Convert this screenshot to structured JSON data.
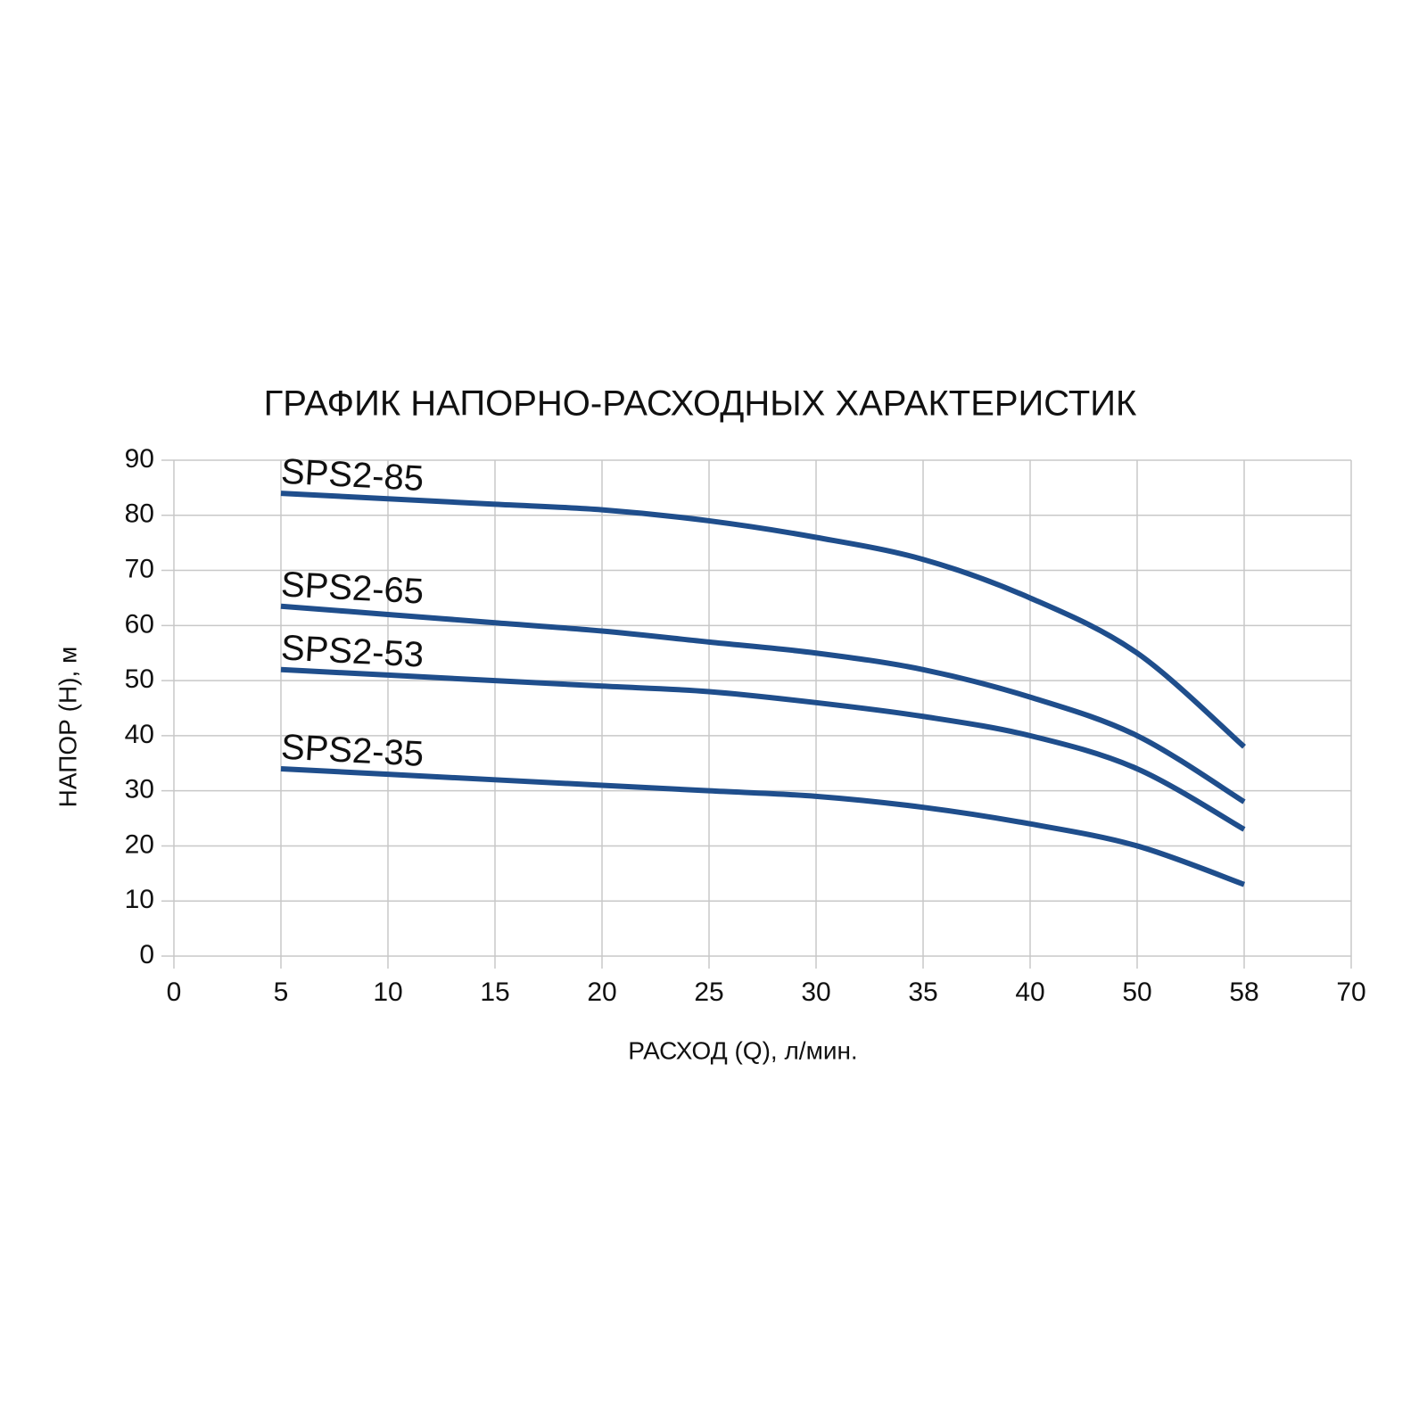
{
  "chart_data": {
    "type": "line",
    "title": "ГРАФИК НАПОРНО-РАСХОДНЫХ ХАРАКТЕРИСТИК",
    "x_label": "РАСХОД (Q), л/мин.",
    "y_label": "НАПОР (H), м",
    "categories": [
      "0",
      "5",
      "10",
      "15",
      "20",
      "25",
      "30",
      "35",
      "40",
      "50",
      "58",
      "70"
    ],
    "series": [
      {
        "name": "SPS2-85",
        "color": "#1f4e8c",
        "values": [
          null,
          84,
          83,
          82,
          81,
          79,
          76,
          72,
          65,
          55,
          38,
          null
        ]
      },
      {
        "name": "SPS2-65",
        "color": "#1f4e8c",
        "values": [
          null,
          63.5,
          62,
          60.5,
          59,
          57,
          55,
          52,
          47,
          40,
          28,
          null
        ]
      },
      {
        "name": "SPS2-53",
        "color": "#1f4e8c",
        "values": [
          null,
          52,
          51,
          50,
          49,
          48,
          46,
          43.5,
          40,
          34,
          23,
          null
        ]
      },
      {
        "name": "SPS2-35",
        "color": "#1f4e8c",
        "values": [
          null,
          34,
          33,
          32,
          31,
          30,
          29,
          27,
          24,
          20,
          13,
          null
        ]
      }
    ],
    "ylim": [
      0,
      90
    ],
    "yticks": [
      0,
      10,
      20,
      30,
      40,
      50,
      60,
      70,
      80,
      90
    ],
    "grid": true
  }
}
